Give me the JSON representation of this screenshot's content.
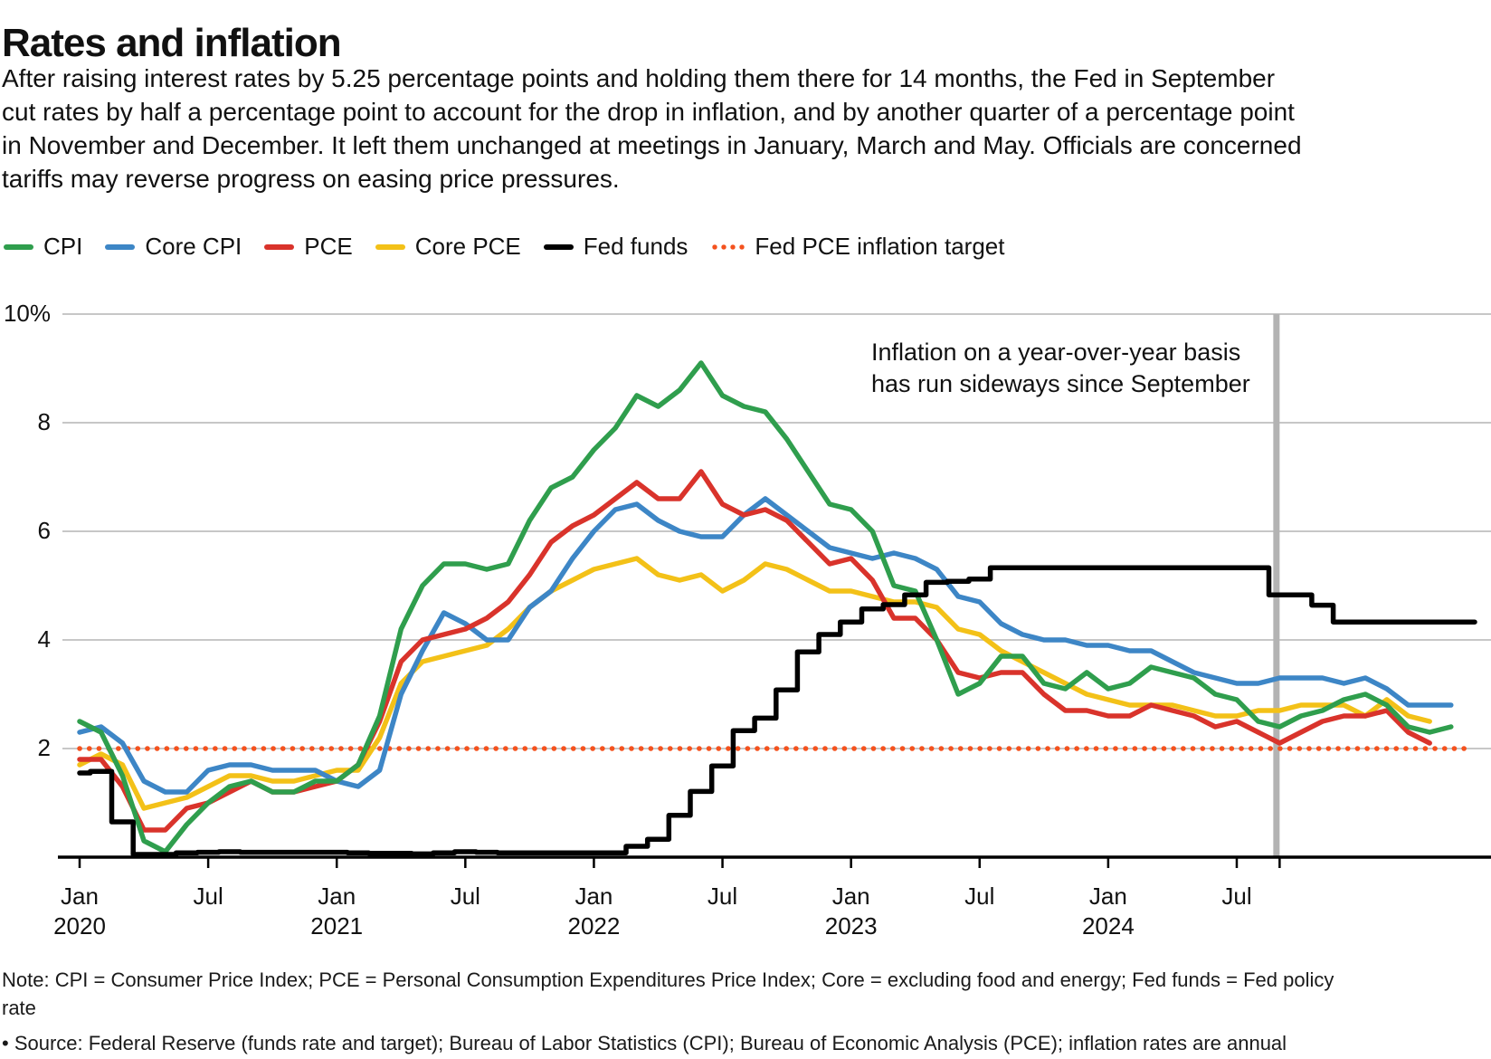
{
  "header": {
    "title": "Rates and inflation",
    "description_lines": [
      "After raising interest rates by 5.25 percentage points and holding them there for 14 months, the Fed in September",
      "cut rates by half a percentage point to account for the drop in inflation, and by another quarter of a percentage point",
      "in November and December. It left them unchanged at meetings in January, March and May. Officials are concerned",
      "tariffs may reverse progress on easing price pressures."
    ]
  },
  "legend": {
    "items": [
      {
        "label": "CPI",
        "color": "#2f9e4d",
        "style": "solid"
      },
      {
        "label": "Core CPI",
        "color": "#3d86c6",
        "style": "solid"
      },
      {
        "label": "PCE",
        "color": "#d9332b",
        "style": "solid"
      },
      {
        "label": "Core PCE",
        "color": "#f3c118",
        "style": "solid"
      },
      {
        "label": "Fed funds",
        "color": "#000000",
        "style": "solid"
      },
      {
        "label": "Fed PCE inflation target",
        "color": "#f4521e",
        "style": "dotted"
      }
    ]
  },
  "chart_data": {
    "type": "line",
    "title": "Rates and inflation",
    "x_unit": "month",
    "x_start": "2020-01",
    "grid": true,
    "legend_position": "top",
    "y_axis": {
      "min": 0,
      "max": 10,
      "ticks": [
        {
          "value": 10,
          "label": "10%"
        },
        {
          "value": 8,
          "label": "8"
        },
        {
          "value": 6,
          "label": "6"
        },
        {
          "value": 4,
          "label": "4"
        },
        {
          "value": 2,
          "label": "2"
        }
      ]
    },
    "x_axis": {
      "ticks": [
        {
          "month": 0,
          "label": "Jan",
          "year": "2020"
        },
        {
          "month": 6,
          "label": "Jul",
          "year": ""
        },
        {
          "month": 12,
          "label": "Jan",
          "year": "2021"
        },
        {
          "month": 18,
          "label": "Jul",
          "year": ""
        },
        {
          "month": 24,
          "label": "Jan",
          "year": "2022"
        },
        {
          "month": 30,
          "label": "Jul",
          "year": ""
        },
        {
          "month": 36,
          "label": "Jan",
          "year": "2023"
        },
        {
          "month": 42,
          "label": "Jul",
          "year": ""
        },
        {
          "month": 48,
          "label": "Jan",
          "year": "2024"
        },
        {
          "month": 54,
          "label": "Jul",
          "year": ""
        },
        {
          "month": 56,
          "label": "",
          "year": ""
        }
      ]
    },
    "series": [
      {
        "name": "CPI",
        "color": "#2f9e4d",
        "line": "linear",
        "values": [
          2.5,
          2.3,
          1.5,
          0.3,
          0.1,
          0.6,
          1.0,
          1.3,
          1.4,
          1.2,
          1.2,
          1.4,
          1.4,
          1.7,
          2.6,
          4.2,
          5.0,
          5.4,
          5.4,
          5.3,
          5.4,
          6.2,
          6.8,
          7.0,
          7.5,
          7.9,
          8.5,
          8.3,
          8.6,
          9.1,
          8.5,
          8.3,
          8.2,
          7.7,
          7.1,
          6.5,
          6.4,
          6.0,
          5.0,
          4.9,
          4.0,
          3.0,
          3.2,
          3.7,
          3.7,
          3.2,
          3.1,
          3.4,
          3.1,
          3.2,
          3.5,
          3.4,
          3.3,
          3.0,
          2.9,
          2.5,
          2.4,
          2.6,
          2.7,
          2.9,
          3.0,
          2.8,
          2.4,
          2.3,
          2.4
        ]
      },
      {
        "name": "Core CPI",
        "color": "#3d86c6",
        "line": "linear",
        "values": [
          2.3,
          2.4,
          2.1,
          1.4,
          1.2,
          1.2,
          1.6,
          1.7,
          1.7,
          1.6,
          1.6,
          1.6,
          1.4,
          1.3,
          1.6,
          3.0,
          3.8,
          4.5,
          4.3,
          4.0,
          4.0,
          4.6,
          4.9,
          5.5,
          6.0,
          6.4,
          6.5,
          6.2,
          6.0,
          5.9,
          5.9,
          6.3,
          6.6,
          6.3,
          6.0,
          5.7,
          5.6,
          5.5,
          5.6,
          5.5,
          5.3,
          4.8,
          4.7,
          4.3,
          4.1,
          4.0,
          4.0,
          3.9,
          3.9,
          3.8,
          3.8,
          3.6,
          3.4,
          3.3,
          3.2,
          3.2,
          3.3,
          3.3,
          3.3,
          3.2,
          3.3,
          3.1,
          2.8,
          2.8,
          2.8
        ]
      },
      {
        "name": "PCE",
        "color": "#d9332b",
        "line": "linear",
        "values": [
          1.8,
          1.8,
          1.3,
          0.5,
          0.5,
          0.9,
          1.0,
          1.2,
          1.4,
          1.2,
          1.2,
          1.3,
          1.4,
          1.7,
          2.5,
          3.6,
          4.0,
          4.1,
          4.2,
          4.4,
          4.7,
          5.2,
          5.8,
          6.1,
          6.3,
          6.6,
          6.9,
          6.6,
          6.6,
          7.1,
          6.5,
          6.3,
          6.4,
          6.2,
          5.8,
          5.4,
          5.5,
          5.1,
          4.4,
          4.4,
          4.0,
          3.4,
          3.3,
          3.4,
          3.4,
          3.0,
          2.7,
          2.7,
          2.6,
          2.6,
          2.8,
          2.7,
          2.6,
          2.4,
          2.5,
          2.3,
          2.1,
          2.3,
          2.5,
          2.6,
          2.6,
          2.7,
          2.3,
          2.1
        ]
      },
      {
        "name": "Core PCE",
        "color": "#f3c118",
        "line": "linear",
        "values": [
          1.7,
          1.9,
          1.7,
          0.9,
          1.0,
          1.1,
          1.3,
          1.5,
          1.5,
          1.4,
          1.4,
          1.5,
          1.6,
          1.6,
          2.2,
          3.2,
          3.6,
          3.7,
          3.8,
          3.9,
          4.2,
          4.6,
          4.9,
          5.1,
          5.3,
          5.4,
          5.5,
          5.2,
          5.1,
          5.2,
          4.9,
          5.1,
          5.4,
          5.3,
          5.1,
          4.9,
          4.9,
          4.8,
          4.7,
          4.7,
          4.6,
          4.2,
          4.1,
          3.8,
          3.6,
          3.4,
          3.2,
          3.0,
          2.9,
          2.8,
          2.8,
          2.8,
          2.7,
          2.6,
          2.6,
          2.7,
          2.7,
          2.8,
          2.8,
          2.8,
          2.6,
          2.9,
          2.6,
          2.5
        ]
      },
      {
        "name": "Fed funds",
        "color": "#000000",
        "line": "step",
        "values": [
          1.55,
          1.58,
          0.65,
          0.05,
          0.05,
          0.08,
          0.09,
          0.1,
          0.09,
          0.09,
          0.09,
          0.09,
          0.09,
          0.08,
          0.07,
          0.07,
          0.06,
          0.08,
          0.1,
          0.09,
          0.08,
          0.08,
          0.08,
          0.08,
          0.08,
          0.08,
          0.2,
          0.33,
          0.77,
          1.21,
          1.68,
          2.33,
          2.56,
          3.08,
          3.78,
          4.1,
          4.33,
          4.57,
          4.65,
          4.83,
          5.06,
          5.08,
          5.12,
          5.33,
          5.33,
          5.33,
          5.33,
          5.33,
          5.33,
          5.33,
          5.33,
          5.33,
          5.33,
          5.33,
          5.33,
          5.33,
          4.83,
          4.83,
          4.64,
          4.33,
          4.33,
          4.33,
          4.33,
          4.33,
          4.33,
          4.33
        ]
      }
    ],
    "target_line": {
      "label": "Fed PCE inflation target",
      "value": 2,
      "color": "#f4521e",
      "style": "dotted"
    },
    "event_marker": {
      "month": 56,
      "color": "#b3b3b3"
    },
    "annotation_lines": [
      "Inflation on a year-over-year basis",
      "has run sideways since September"
    ]
  },
  "footer": {
    "note_lines": [
      "Note: CPI = Consumer Price Index; PCE = Personal Consumption Expenditures Price Index; Core = excluding food and energy; Fed funds = Fed policy",
      "rate"
    ],
    "source_line": "• Source: Federal Reserve (funds rate and target); Bureau of Labor Statistics (CPI); Bureau of Economic Analysis (PCE); inflation rates are annual"
  }
}
